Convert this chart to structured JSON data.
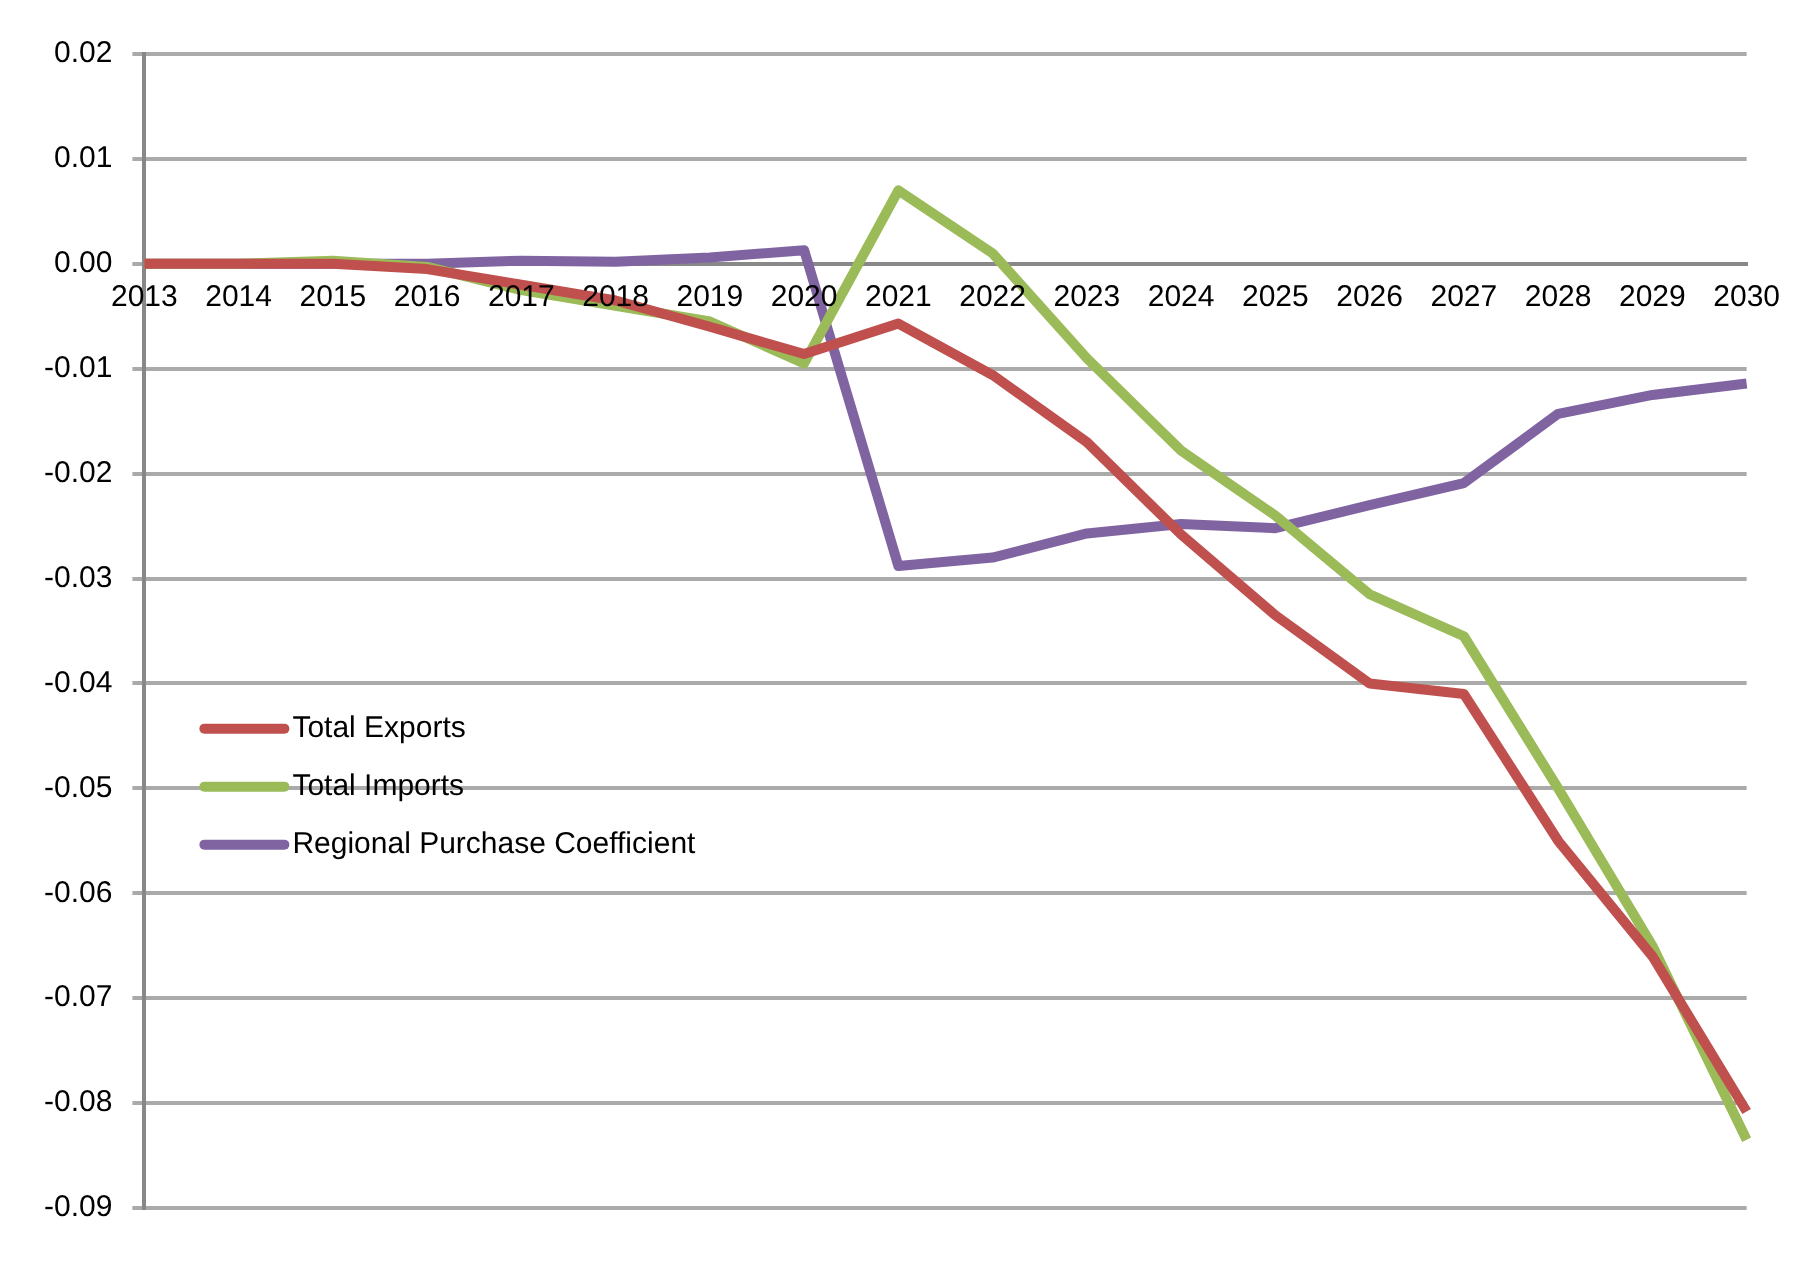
{
  "chart_data": {
    "type": "line",
    "categories": [
      "2013",
      "2014",
      "2015",
      "2016",
      "2017",
      "2018",
      "2019",
      "2020",
      "2021",
      "2022",
      "2023",
      "2024",
      "2025",
      "2026",
      "2027",
      "2028",
      "2029",
      "2030"
    ],
    "series": [
      {
        "name": "Total Exports",
        "color": "#c0504d",
        "values": [
          0,
          0,
          0,
          -0.0005,
          -0.002,
          -0.0035,
          -0.006,
          -0.0086,
          -0.0057,
          -0.0106,
          -0.017,
          -0.0258,
          -0.0335,
          -0.04,
          -0.041,
          -0.055,
          -0.066,
          -0.0808
        ]
      },
      {
        "name": "Total Imports",
        "color": "#9bbb59",
        "values": [
          0,
          0,
          0.0003,
          -0.0003,
          -0.0025,
          -0.004,
          -0.0055,
          -0.0095,
          0.007,
          0.001,
          -0.009,
          -0.0178,
          -0.024,
          -0.0315,
          -0.0355,
          -0.05,
          -0.065,
          -0.0835
        ]
      },
      {
        "name": "Regional Purchase Coefficient",
        "color": "#8064a2",
        "values": [
          0,
          0,
          0,
          0,
          0.0003,
          0.0002,
          0.0006,
          0.0013,
          -0.0288,
          -0.028,
          -0.0257,
          -0.0248,
          -0.0252,
          -0.023,
          -0.0209,
          -0.0143,
          -0.0125,
          -0.0114
        ]
      }
    ],
    "ylim": [
      -0.09,
      0.02
    ],
    "yticks": [
      0.02,
      0.01,
      {
        "value": 0,
        "label": "0.00"
      },
      -0.01,
      -0.02,
      -0.03,
      -0.04,
      -0.05,
      -0.06,
      -0.07,
      -0.08,
      -0.09
    ],
    "grid": "y",
    "legend": "left",
    "marker": "none",
    "line_style": "solid"
  }
}
